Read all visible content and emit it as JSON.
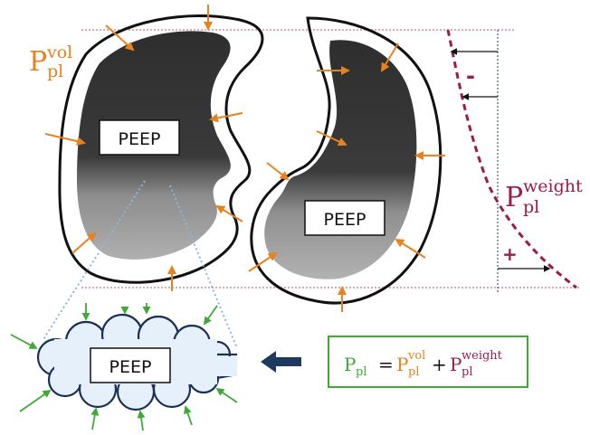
{
  "labels": {
    "peep": "PEEP",
    "p": "P",
    "pl": "pl",
    "vol": "vol",
    "weight": "weight",
    "minus": "-",
    "plus": "+",
    "equals": "=",
    "plus_op": "+"
  },
  "colors": {
    "orange": "#E8821E",
    "maroon": "#9B1B4B",
    "green": "#3DAA35",
    "navy": "#1F3A5F",
    "cloud_outline": "#1B2F57",
    "cloud_fill": "#E6F0FB",
    "lung_dark": "#3b3b3b",
    "lung_light": "#a9a9a9",
    "guide_line": "#C0506E",
    "dotted_blue": "#8DB6DA"
  }
}
